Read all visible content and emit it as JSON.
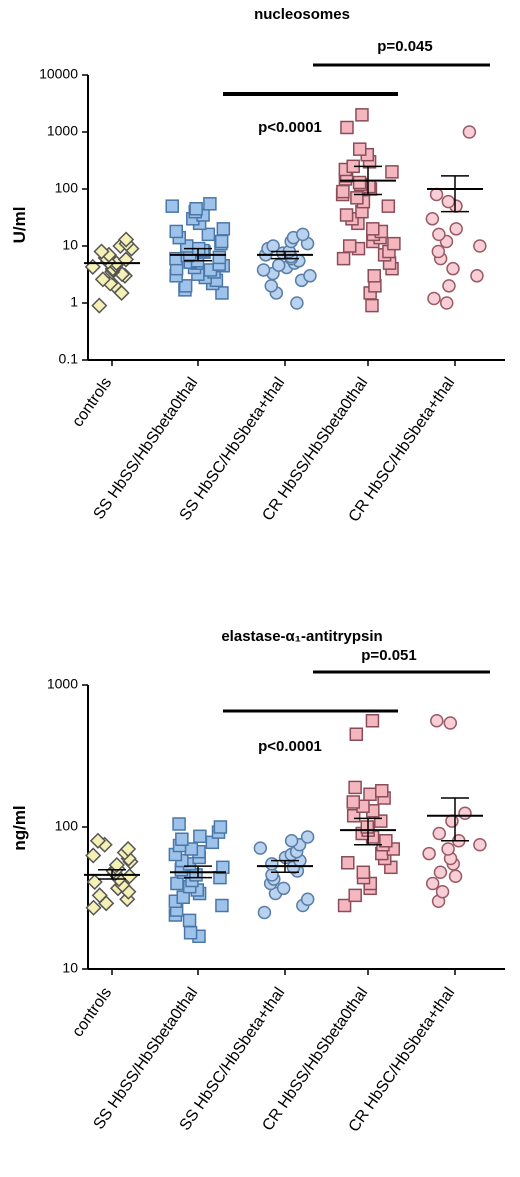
{
  "chart_data": [
    {
      "type": "scatter",
      "title": "nucleosomes",
      "ylabel": "U/ml",
      "yscale": "log",
      "ylim": [
        0.1,
        10000
      ],
      "yticks": [
        "0.1",
        "1",
        "10",
        "100",
        "1000",
        "10000"
      ],
      "categories": [
        "controls",
        "SS HbSS/HbSbeta0thal",
        "SS HbSC/HbSbeta+thal",
        "CR HbSS/HbSbeta0thal",
        "CR HbSC/HbSbeta+thal"
      ],
      "marker_colors": [
        "#f5f0b4",
        "#9ec3ea",
        "#b8d2f0",
        "#f4b7c0",
        "#f8cfd6"
      ],
      "marker_shapes": [
        "diamond",
        "square",
        "circle",
        "square",
        "circle"
      ],
      "series": [
        {
          "values": [
            0.9,
            1.5,
            2,
            2.2,
            2.6,
            3,
            3.2,
            3.5,
            3.8,
            4,
            4.3,
            4.6,
            5,
            5.3,
            5.8,
            6.2,
            7,
            8,
            9,
            10,
            11,
            13
          ],
          "mean": 5.0
        },
        {
          "values": [
            1.5,
            1.7,
            2,
            2.2,
            2.5,
            2.8,
            3,
            3.2,
            3.5,
            3.8,
            4,
            4.2,
            4.5,
            4.8,
            5,
            5.2,
            5.5,
            6,
            6.3,
            6.8,
            7.2,
            7.8,
            8.3,
            9,
            10,
            11,
            12,
            14,
            16,
            18,
            20,
            25,
            30,
            35,
            40,
            45,
            50,
            55
          ],
          "mean": 7.0,
          "error": [
            5.5,
            9.0
          ]
        },
        {
          "values": [
            1,
            1.5,
            2,
            2.5,
            3,
            3.3,
            3.8,
            4.2,
            4.6,
            5,
            5.5,
            6,
            6.5,
            7,
            7.5,
            8,
            9,
            10,
            11,
            12,
            14,
            16
          ],
          "mean": 7.0,
          "error": [
            6.0,
            8.0
          ]
        },
        {
          "values": [
            0.9,
            1.5,
            2,
            3,
            4,
            5,
            6,
            7,
            8,
            9,
            10,
            11,
            12,
            14,
            16,
            18,
            20,
            25,
            30,
            35,
            40,
            50,
            60,
            70,
            80,
            90,
            100,
            110,
            120,
            130,
            150,
            170,
            200,
            220,
            250,
            300,
            400,
            500,
            1200,
            2000
          ],
          "mean": 140,
          "error": [
            80,
            250
          ]
        },
        {
          "values": [
            1,
            1.2,
            2,
            3,
            4,
            6,
            8,
            10,
            12,
            16,
            20,
            30,
            50,
            60,
            80,
            1000
          ],
          "mean": 100,
          "error": [
            40,
            170
          ]
        }
      ],
      "annotations": [
        {
          "text": "p<0.0001",
          "from": 1,
          "to": 3
        },
        {
          "text": "p=0.045",
          "from": 3,
          "to": 4
        }
      ]
    },
    {
      "type": "scatter",
      "title": "elastase-α₁-antitrypsin",
      "ylabel": "ng/ml",
      "yscale": "log",
      "ylim": [
        10,
        1000
      ],
      "yticks": [
        "10",
        "100",
        "1000"
      ],
      "categories": [
        "controls",
        "SS HbSS/HbSbeta0thal",
        "SS HbSC/HbSbeta+thal",
        "CR HbSS/HbSbeta0thal",
        "CR HbSC/HbSbeta+thal"
      ],
      "marker_colors": [
        "#f5f0b4",
        "#9ec3ea",
        "#b8d2f0",
        "#f4b7c0",
        "#f8cfd6"
      ],
      "marker_shapes": [
        "diamond",
        "square",
        "circle",
        "square",
        "circle"
      ],
      "series": [
        {
          "values": [
            27,
            29,
            31,
            33,
            35,
            37,
            39,
            41,
            43,
            45,
            47,
            49,
            51,
            54,
            57,
            60,
            63,
            66,
            70,
            75,
            80
          ],
          "mean": 46,
          "error": [
            43,
            50
          ]
        },
        {
          "values": [
            17,
            18,
            22,
            24,
            26,
            28,
            30,
            32,
            34,
            36,
            38,
            40,
            42,
            44,
            46,
            48,
            50,
            52,
            55,
            58,
            61,
            64,
            67,
            70,
            74,
            78,
            82,
            86,
            92,
            100,
            105
          ],
          "mean": 48,
          "error": [
            44,
            53
          ]
        },
        {
          "values": [
            25,
            28,
            31,
            34,
            37,
            40,
            43,
            46,
            49,
            52,
            55,
            58,
            61,
            64,
            67,
            71,
            75,
            80,
            85
          ],
          "mean": 53,
          "error": [
            48,
            58
          ]
        },
        {
          "values": [
            28,
            33,
            37,
            40,
            44,
            48,
            52,
            56,
            60,
            65,
            70,
            75,
            80,
            85,
            90,
            95,
            100,
            110,
            120,
            130,
            140,
            150,
            160,
            170,
            180,
            190,
            450,
            560
          ],
          "mean": 95,
          "error": [
            75,
            115
          ]
        },
        {
          "values": [
            30,
            35,
            40,
            45,
            48,
            55,
            60,
            65,
            70,
            75,
            80,
            90,
            110,
            125,
            540,
            560
          ],
          "mean": 120,
          "error": [
            80,
            160
          ]
        }
      ],
      "annotations": [
        {
          "text": "p<0.0001",
          "from": 1,
          "to": 3
        },
        {
          "text": "p=0.051",
          "from": 3,
          "to": 4
        }
      ]
    }
  ]
}
